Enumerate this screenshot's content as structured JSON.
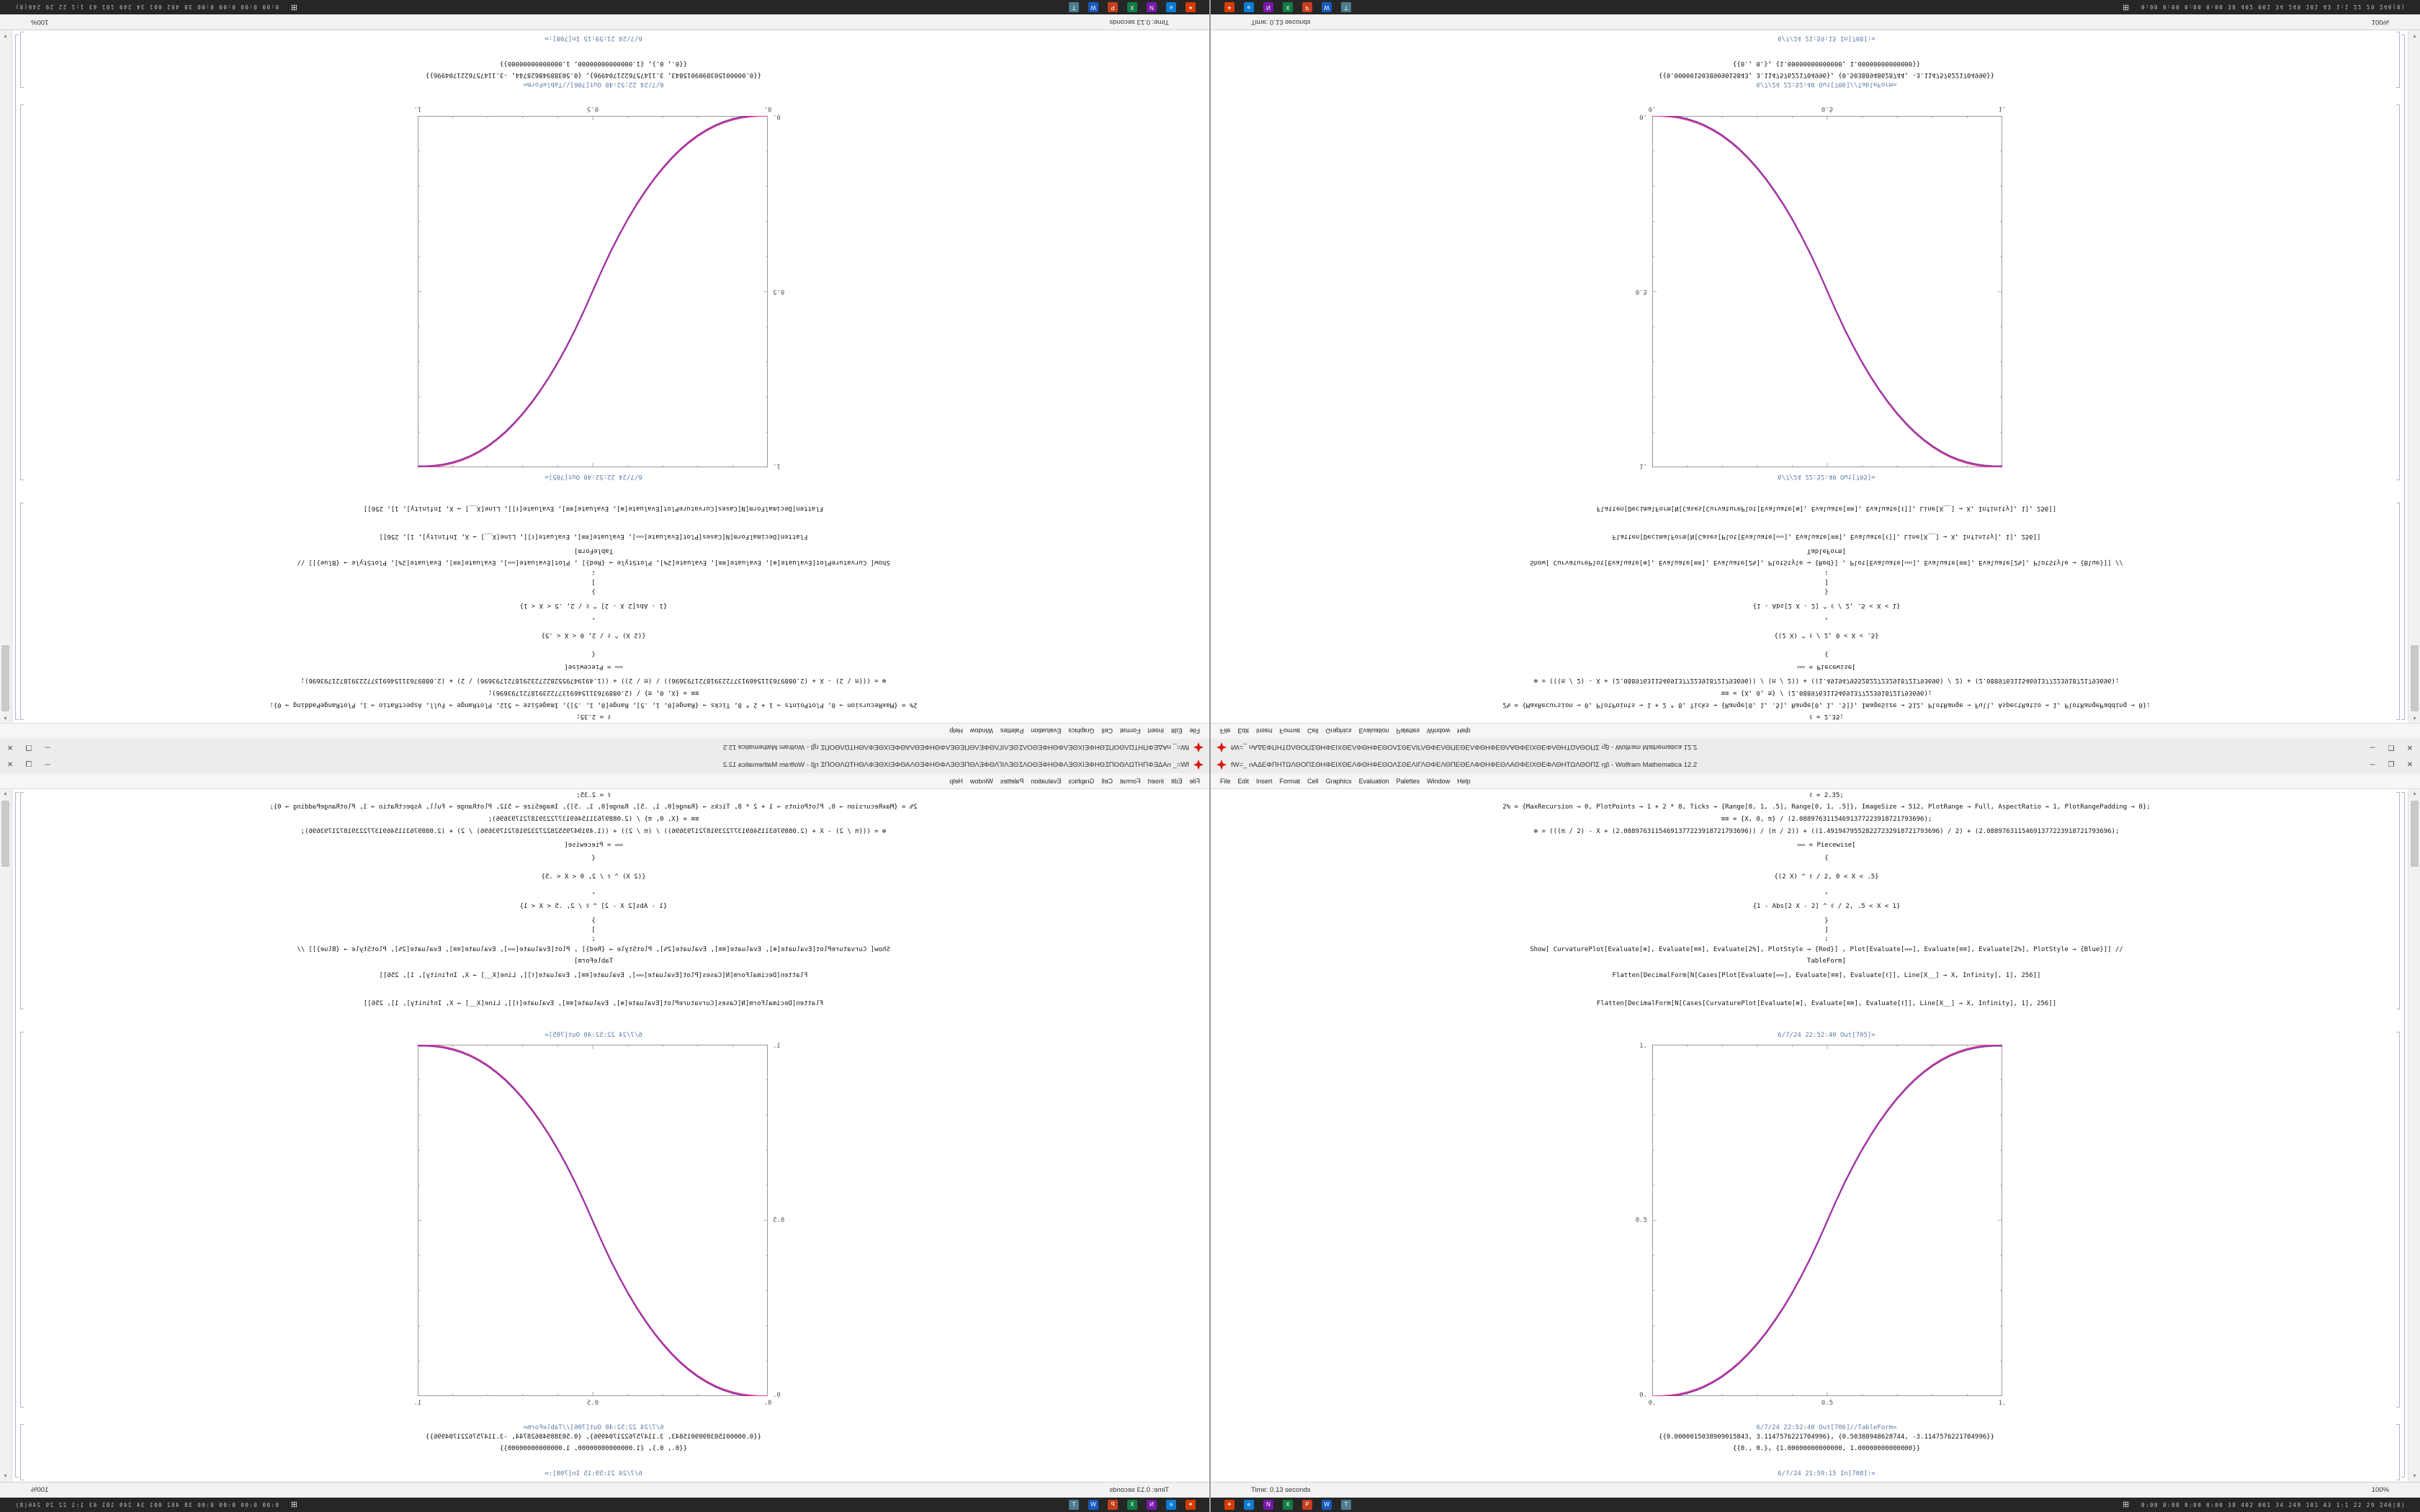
{
  "window": {
    "title": "fW=_ nΑΔΕΦΠΗΤΩΛΘΟΠΣΘΗΦΕΙΧΘΕΛΦΘΗΦΕΘΟΛΣΘΕΛΙΓΛΘΦΕΛΘΠΕΘΕΛΦΘΗΦΕΘΛΑΘΦΕΙΧΘΕΦΛΘΗΤΩΛΘΟΠΣ ηβ - Wolfram Mathematica 12.2",
    "controls": {
      "minimize": "─",
      "maximize": "❐",
      "close": "✕"
    }
  },
  "menu": {
    "items": [
      "File",
      "Edit",
      "Insert",
      "Format",
      "Cell",
      "Graphics",
      "Evaluation",
      "Palettes",
      "Window",
      "Help"
    ]
  },
  "notebook": {
    "input_lines": [
      "ℓ = 2.35;",
      "2% = {MaxRecursion → 0, PlotPoints → 1 + 2 * 8, Ticks → {Range[0, 1, .5], Range[0, 1, .5]}, ImageSize → 512, PlotRange → Full, AspectRatio → 1, PlotRangePadding → 0};",
      "≡≡ = {X, 0, π} / (2.08897631154691377223918721793696);",
      "⊕ = (((π / 2) - X + (2.08897631154691377223918721793696)) / (π / 2)) + ((1.49194795528227232918721793696) / 2) + (2.08897631154691377223918721793696);",
      "⇔⇔ = Piecewise[",
      "{",
      "{(2 X) ^ ℓ / 2, 0 < X < .5}",
      ",",
      "{1 - Abs[2 X - 2] ^ ℓ / 2, .5 < X < 1}",
      "}",
      "]",
      ";",
      "Show[ CurvaturePlot[Evaluate[⊕], Evaluate[≡≡], Evaluate[2%], PlotStyle → {Red}] , Plot[Evaluate[⇔⇔], Evaluate[≡≡], Evaluate[2%], PlotStyle → {Blue}]] //",
      "TableForm]",
      "Flatten[DecimalForm[N[Cases[Plot[Evaluate[⇔⇔], Evaluate[≡≡], Evaluate[ℓ]], Line[X__] → X, Infinity], 1], 256]]",
      "Flatten[DecimalForm[N[Cases[CurvaturePlot[Evaluate[⊕], Evaluate[≡≡], Evaluate[ℓ]], Line[X__] → X, Infinity], 1], 256]]"
    ],
    "labels": {
      "out_plot": "6/7/24 22:52:40 Out[705]=",
      "out_table": "6/7/24 22:52:40 Out[706]//TableForm=",
      "in_next": "6/7/24 21:59:15 In[708]:="
    },
    "table_rows": [
      "{{0.0000015038909015843, 3.1147576221704996}, {0.50388948628744, -3.1147576221704996}}",
      "{{0., 0.}, {1.00000000000000, 1.00000000000000}}"
    ]
  },
  "statusbar": {
    "time": "Time: 0.13 seconds",
    "zoom": "100%"
  },
  "scrollbar": {
    "up": "▲",
    "down": "▼"
  },
  "taskbar": {
    "start_glyph": "⊞",
    "tray_text": "0:00 0:00 0:00 0:00  38 402 001 34 249 101 43  1:1 22 29  246(8)",
    "icons": [
      {
        "name": "mathematica",
        "glyph": "✦",
        "color": "#d83b01"
      },
      {
        "name": "edge-browser",
        "glyph": "e",
        "color": "#0a7cd6"
      },
      {
        "name": "onenote",
        "glyph": "N",
        "color": "#7719aa"
      },
      {
        "name": "excel",
        "glyph": "X",
        "color": "#107c41"
      },
      {
        "name": "powerpoint",
        "glyph": "P",
        "color": "#c43e1c"
      },
      {
        "name": "word",
        "glyph": "W",
        "color": "#185abd"
      },
      {
        "name": "teams",
        "glyph": "T",
        "color": "#4b7d8f"
      }
    ]
  },
  "colors": {
    "curve_red": "#dc3c8c",
    "curve_blue": "#8a35ad",
    "plot_frame": "#999999",
    "cell_label": "#5e7ca6",
    "taskbar_bg": "#262626"
  },
  "chart_data": {
    "type": "line",
    "title": "",
    "xlabel": "",
    "ylabel": "",
    "xlim": [
      0,
      1
    ],
    "ylim": [
      0,
      1
    ],
    "frame": true,
    "grid": false,
    "legend": "none",
    "xticks": [
      "0.",
      "0.5",
      "1."
    ],
    "yticks": [
      "0.",
      "0.5",
      "1."
    ],
    "x": [
      0,
      0.025,
      0.05,
      0.075,
      0.1,
      0.125,
      0.15,
      0.175,
      0.2,
      0.225,
      0.25,
      0.275,
      0.3,
      0.325,
      0.35,
      0.375,
      0.4,
      0.425,
      0.45,
      0.475,
      0.5,
      0.525,
      0.55,
      0.575,
      0.6,
      0.625,
      0.65,
      0.675,
      0.7,
      0.725,
      0.75,
      0.775,
      0.8,
      0.825,
      0.85,
      0.875,
      0.9,
      0.925,
      0.95,
      0.975,
      1
    ],
    "series": [
      {
        "name": "CurvaturePlot (Red)",
        "color": "#dc3c8c",
        "values": [
          0,
          0.0004,
          0.0022,
          0.0058,
          0.0114,
          0.0192,
          0.0295,
          0.0424,
          0.058,
          0.0766,
          0.098,
          0.1227,
          0.1506,
          0.1817,
          0.2163,
          0.2543,
          0.296,
          0.3413,
          0.3904,
          0.4433,
          0.5,
          0.5567,
          0.6096,
          0.6587,
          0.704,
          0.7457,
          0.7837,
          0.8183,
          0.8494,
          0.8773,
          0.902,
          0.9234,
          0.942,
          0.9576,
          0.9705,
          0.9808,
          0.9886,
          0.9942,
          0.9978,
          0.9996,
          1
        ]
      },
      {
        "name": "Plot (Blue)",
        "color": "#8a35ad",
        "values": [
          0,
          0.0004,
          0.0022,
          0.0058,
          0.0114,
          0.0192,
          0.0295,
          0.0424,
          0.058,
          0.0766,
          0.098,
          0.1227,
          0.1506,
          0.1817,
          0.2163,
          0.2543,
          0.296,
          0.3413,
          0.3904,
          0.4433,
          0.5,
          0.5567,
          0.6096,
          0.6587,
          0.704,
          0.7457,
          0.7837,
          0.8183,
          0.8494,
          0.8773,
          0.902,
          0.9234,
          0.942,
          0.9576,
          0.9705,
          0.9808,
          0.9886,
          0.9942,
          0.9978,
          0.9996,
          1
        ]
      }
    ]
  }
}
